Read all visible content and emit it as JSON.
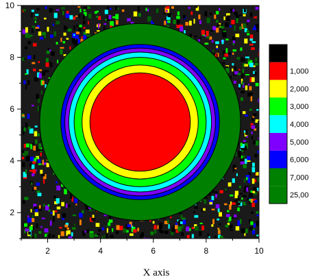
{
  "chart_data": {
    "type": "heatmap",
    "subtype": "contour",
    "title": "",
    "xlabel": "X axis",
    "ylabel": "",
    "xlim": [
      1,
      10
    ],
    "ylim": [
      1,
      10
    ],
    "x_ticks": [
      2,
      4,
      6,
      8,
      10
    ],
    "y_ticks": [
      2,
      4,
      6,
      8,
      10
    ],
    "x_tick_labels": [
      "2",
      "4",
      "6",
      "8",
      "10"
    ],
    "y_tick_labels": [
      "2",
      "4",
      "6",
      "8",
      "10"
    ],
    "center": [
      5.5,
      5.5
    ],
    "background": "noisy-multicolor",
    "contour_rings": [
      {
        "radius": 3.8,
        "color": "#008000"
      },
      {
        "radius": 3.0,
        "color": "#0000ff"
      },
      {
        "radius": 2.85,
        "color": "#8000ff"
      },
      {
        "radius": 2.7,
        "color": "#00ffff"
      },
      {
        "radius": 2.5,
        "color": "#00ff00"
      },
      {
        "radius": 2.2,
        "color": "#ffff00"
      },
      {
        "radius": 1.9,
        "color": "#ff0000"
      }
    ],
    "legend": {
      "position": "right",
      "entries": [
        {
          "label": "",
          "color": "#000000"
        },
        {
          "label": "1,000",
          "color": "#ff0000"
        },
        {
          "label": "2,000",
          "color": "#ffff00"
        },
        {
          "label": "3,000",
          "color": "#00ff00"
        },
        {
          "label": "4,000",
          "color": "#00ffff"
        },
        {
          "label": "5,000",
          "color": "#8000ff"
        },
        {
          "label": "6,000",
          "color": "#0000ff"
        },
        {
          "label": "7,000",
          "color": "#008000"
        },
        {
          "label": "25,00",
          "color": "#008000"
        }
      ]
    }
  }
}
